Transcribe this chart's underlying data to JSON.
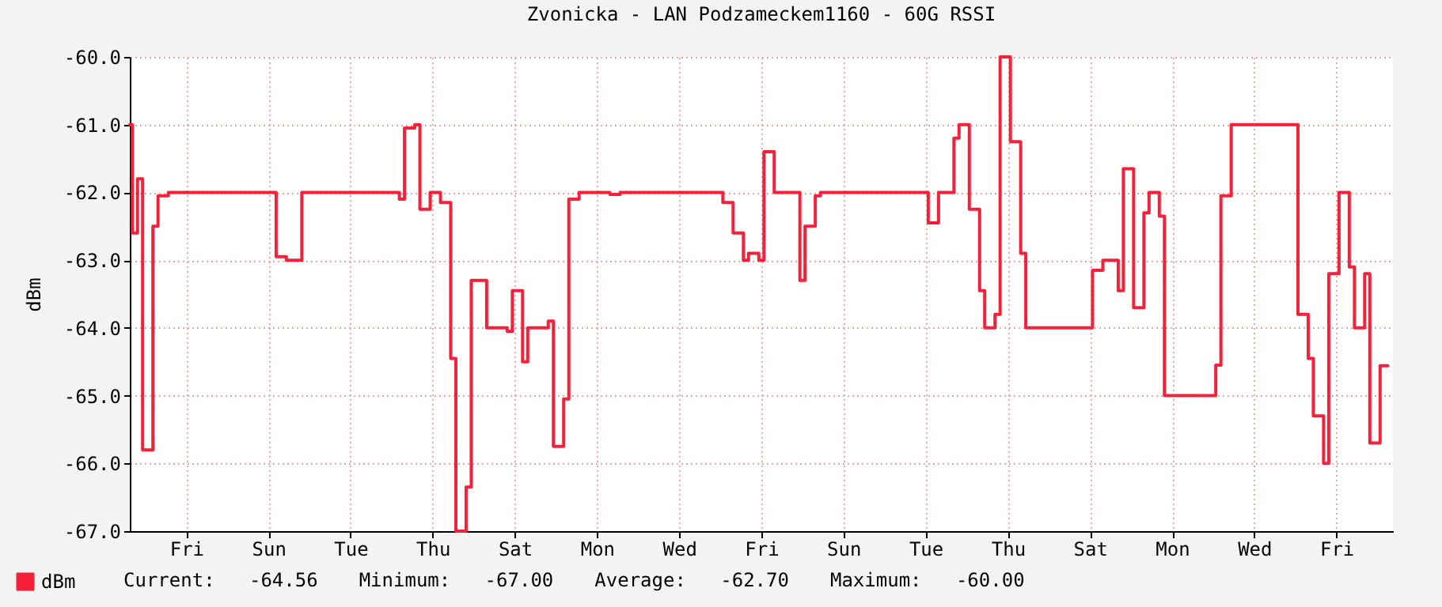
{
  "chart_data": {
    "type": "step",
    "title": "Zvonicka - LAN Podzameckem1160 - 60G RSSI",
    "ylabel": "dBm",
    "categories": [
      null,
      null,
      null,
      null,
      null,
      null,
      null,
      null,
      null,
      null,
      null,
      "Fri",
      null,
      null,
      null,
      null,
      null,
      null,
      null,
      null,
      null,
      null,
      null,
      null,
      null,
      null,
      null,
      "Sun",
      null,
      null,
      null,
      null,
      null,
      null,
      null,
      null,
      null,
      null,
      null,
      null,
      null,
      null,
      null,
      "Tue",
      null,
      null,
      null,
      null,
      null,
      null,
      null,
      null,
      null,
      null,
      null,
      null,
      null,
      null,
      null,
      "Thu",
      null,
      null,
      null,
      null,
      null,
      null,
      null,
      null,
      null,
      null,
      null,
      null,
      null,
      null,
      null,
      "Sat",
      null,
      null,
      null,
      null,
      null,
      null,
      null,
      null,
      null,
      null,
      null,
      null,
      null,
      null,
      null,
      "Mon",
      null,
      null,
      null,
      null,
      null,
      null,
      null,
      null,
      null,
      null,
      null,
      null,
      null,
      null,
      null,
      "Wed",
      null,
      null,
      null,
      null,
      null,
      null,
      null,
      null,
      null,
      null,
      null,
      null,
      null,
      null,
      null,
      "Fri",
      null,
      null,
      null,
      null,
      null,
      null,
      null,
      null,
      null,
      null,
      null,
      null,
      null,
      null,
      null,
      "Sun",
      null,
      null,
      null,
      null,
      null,
      null,
      null,
      null,
      null,
      null,
      null,
      null,
      null,
      null,
      null,
      "Tue",
      null,
      null,
      null,
      null,
      null,
      null,
      null,
      null,
      null,
      null,
      null,
      null,
      null,
      null,
      null,
      "Thu",
      null,
      null,
      null,
      null,
      null,
      null,
      null,
      null,
      null,
      null,
      null,
      null,
      null,
      null,
      null,
      "Sat",
      null,
      null,
      null,
      null,
      null,
      null,
      null,
      null,
      null,
      null,
      null,
      null,
      null,
      null,
      null,
      "Mon",
      null,
      null,
      null,
      null,
      null,
      null,
      null,
      null,
      null,
      null,
      null,
      null,
      null,
      null,
      null,
      "Wed",
      null,
      null,
      null,
      null,
      null,
      null,
      null,
      null,
      null,
      null,
      null,
      null,
      null,
      null,
      null,
      "Fri",
      null,
      null,
      null,
      null,
      null,
      null,
      null,
      null,
      null,
      null,
      null
    ],
    "series": [
      {
        "name": "dBm",
        "color": "#f5203a",
        "values": [
          -61.0,
          -62.6,
          -61.8,
          -65.8,
          -65.8,
          -62.5,
          -62.05,
          -62.05,
          -62.0,
          -62.0,
          -62.0,
          -62.0,
          -62.0,
          -62.0,
          -62.0,
          -62.0,
          -62.0,
          -62.0,
          -62.0,
          -62.0,
          -62.0,
          -62.0,
          -62.0,
          -62.0,
          -62.0,
          -62.0,
          -62.0,
          -62.0,
          -62.0,
          -62.95,
          -62.95,
          -63.0,
          -63.0,
          -63.0,
          -62.0,
          -62.0,
          -62.0,
          -62.0,
          -62.0,
          -62.0,
          -62.0,
          -62.0,
          -62.0,
          -62.0,
          -62.0,
          -62.0,
          -62.0,
          -62.0,
          -62.0,
          -62.0,
          -62.0,
          -62.0,
          -62.0,
          -62.1,
          -61.05,
          -61.05,
          -61.0,
          -62.25,
          -62.25,
          -62.0,
          -62.0,
          -62.15,
          -62.15,
          -64.45,
          -67.0,
          -67.0,
          -66.35,
          -63.3,
          -63.3,
          -63.3,
          -64.0,
          -64.0,
          -64.0,
          -64.0,
          -64.05,
          -63.45,
          -63.45,
          -64.5,
          -64.0,
          -64.0,
          -64.0,
          -64.0,
          -63.9,
          -65.75,
          -65.75,
          -65.05,
          -62.1,
          -62.1,
          -62.0,
          -62.0,
          -62.0,
          -62.0,
          -62.0,
          -62.0,
          -62.03,
          -62.03,
          -62.0,
          -62.0,
          -62.0,
          -62.0,
          -62.0,
          -62.0,
          -62.0,
          -62.0,
          -62.0,
          -62.0,
          -62.0,
          -62.0,
          -62.0,
          -62.0,
          -62.0,
          -62.0,
          -62.0,
          -62.0,
          -62.0,
          -62.0,
          -62.15,
          -62.15,
          -62.6,
          -62.6,
          -63.0,
          -62.9,
          -62.9,
          -63.0,
          -61.4,
          -61.4,
          -62.0,
          -62.0,
          -62.0,
          -62.0,
          -62.0,
          -63.3,
          -62.5,
          -62.5,
          -62.05,
          -62.0,
          -62.0,
          -62.0,
          -62.0,
          -62.0,
          -62.0,
          -62.0,
          -62.0,
          -62.0,
          -62.0,
          -62.0,
          -62.0,
          -62.0,
          -62.0,
          -62.0,
          -62.0,
          -62.0,
          -62.0,
          -62.0,
          -62.0,
          -62.0,
          -62.45,
          -62.45,
          -62.0,
          -62.0,
          -62.0,
          -61.2,
          -61.0,
          -61.0,
          -62.25,
          -62.25,
          -63.45,
          -64.0,
          -64.0,
          -63.8,
          -60.0,
          -60.0,
          -61.25,
          -61.25,
          -62.9,
          -64.0,
          -64.0,
          -64.0,
          -64.0,
          -64.0,
          -64.0,
          -64.0,
          -64.0,
          -64.0,
          -64.0,
          -64.0,
          -64.0,
          -64.0,
          -63.15,
          -63.15,
          -63.0,
          -63.0,
          -63.0,
          -63.45,
          -61.65,
          -61.65,
          -63.7,
          -63.7,
          -62.3,
          -62.0,
          -62.0,
          -62.35,
          -65.0,
          -65.0,
          -65.0,
          -65.0,
          -65.0,
          -65.0,
          -65.0,
          -65.0,
          -65.0,
          -65.0,
          -64.55,
          -62.05,
          -62.05,
          -61.0,
          -61.0,
          -61.0,
          -61.0,
          -61.0,
          -61.0,
          -61.0,
          -61.0,
          -61.0,
          -61.0,
          -61.0,
          -61.0,
          -61.0,
          -63.8,
          -63.8,
          -64.45,
          -65.3,
          -65.3,
          -66.0,
          -63.2,
          -63.2,
          -62.0,
          -62.0,
          -63.1,
          -64.0,
          -64.0,
          -63.2,
          -65.7,
          -65.7,
          -64.56,
          -64.56,
          null
        ]
      }
    ],
    "ylim": [
      -67,
      -60
    ],
    "yticks": [
      {
        "value": -67,
        "label": "-67.0"
      },
      {
        "value": -66,
        "label": "-66.0"
      },
      {
        "value": -65,
        "label": "-65.0"
      },
      {
        "value": -64,
        "label": "-64.0"
      },
      {
        "value": -63,
        "label": "-63.0"
      },
      {
        "value": -62,
        "label": "-62.0"
      },
      {
        "value": -61,
        "label": "-61.0"
      },
      {
        "value": -60,
        "label": "-60.0"
      }
    ],
    "grid": true,
    "legend": "bottom",
    "line_style": "solid",
    "annotations": [
      "Current:   -64.56",
      "Minimum:   -67.00",
      "Average:   -62.70",
      "Maximum:   -60.00"
    ]
  }
}
